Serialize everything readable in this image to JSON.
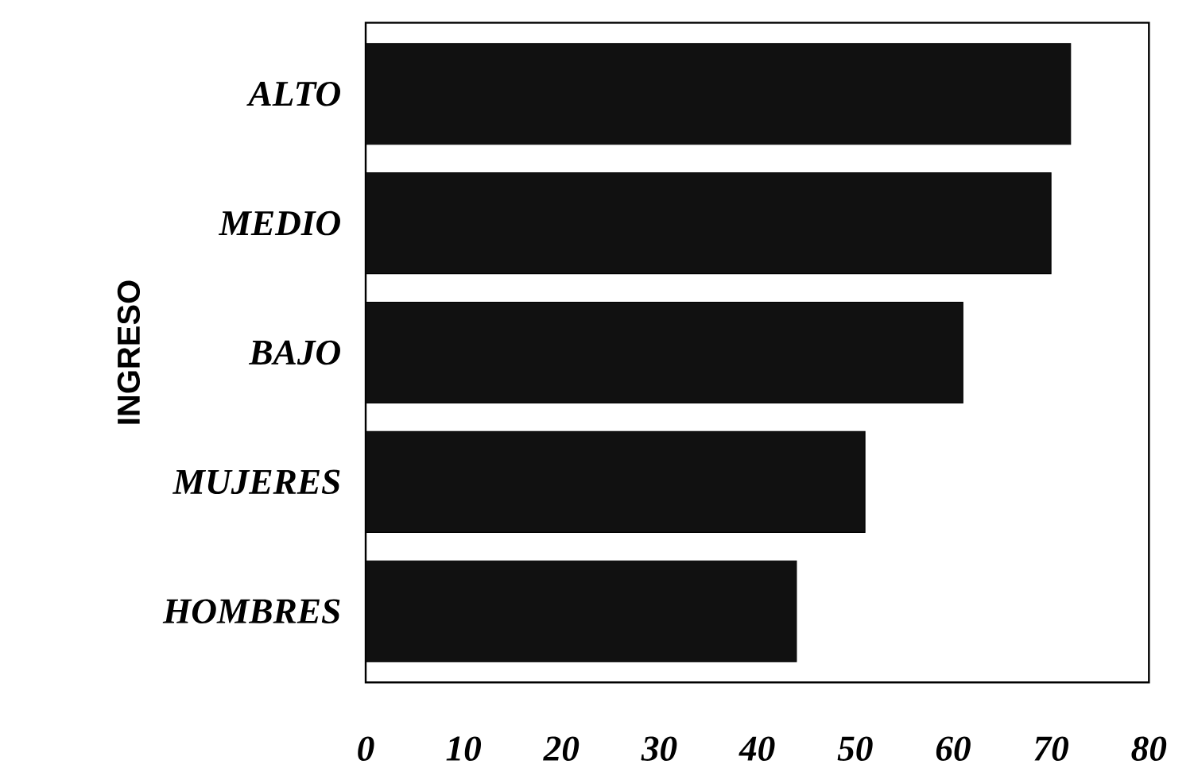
{
  "chart_data": {
    "type": "bar",
    "orientation": "horizontal",
    "ylabel": "INGRESO",
    "categories": [
      "ALTO",
      "MEDIO",
      "BAJO",
      "MUJERES",
      "HOMBRES"
    ],
    "values": [
      72,
      70,
      61,
      51,
      44
    ],
    "color": "#111111",
    "xlim": [
      0,
      80
    ],
    "xticks": [
      0,
      10,
      20,
      30,
      40,
      50,
      60,
      70,
      80
    ],
    "grid": false
  }
}
